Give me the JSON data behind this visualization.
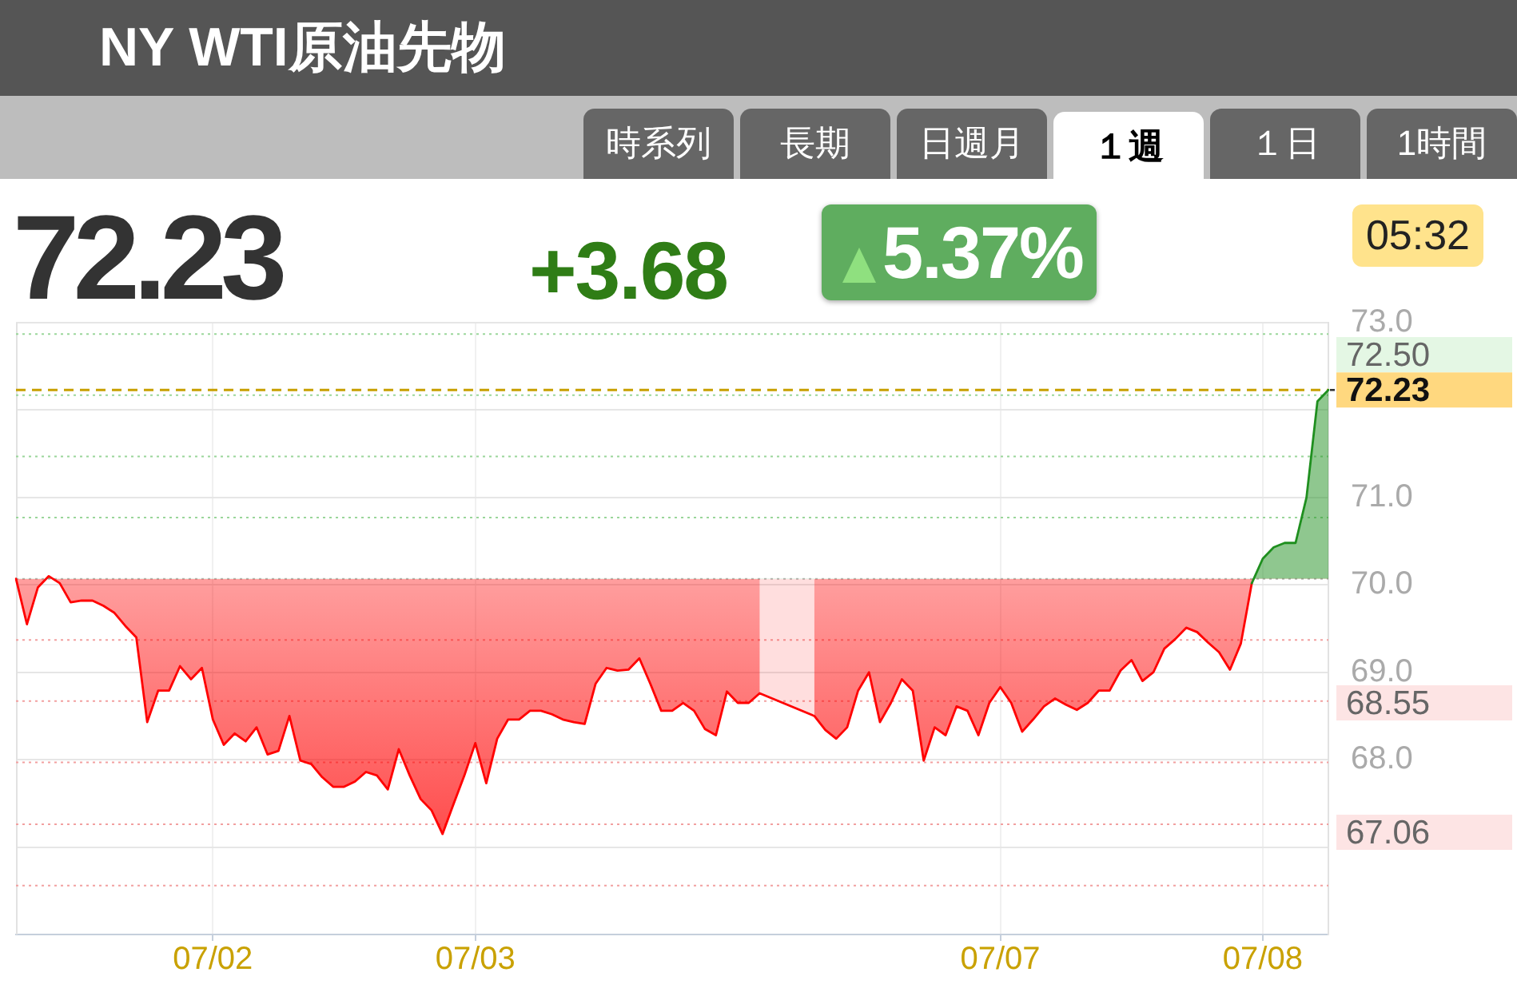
{
  "chart_data": {
    "type": "area",
    "title": "NY WTI原油先物",
    "categories": [
      null,
      null,
      null,
      null,
      null,
      null,
      null,
      null,
      null,
      null,
      null,
      null,
      null,
      null,
      null,
      null,
      null,
      null,
      "07/02",
      null,
      null,
      null,
      null,
      null,
      null,
      null,
      null,
      null,
      null,
      null,
      null,
      null,
      null,
      null,
      null,
      null,
      null,
      null,
      null,
      null,
      null,
      null,
      "07/03",
      null,
      null,
      null,
      null,
      null,
      null,
      null,
      null,
      null,
      null,
      null,
      null,
      null,
      null,
      null,
      null,
      null,
      null,
      null,
      null,
      null,
      null,
      null,
      null,
      null,
      null,
      null,
      null,
      null,
      null,
      null,
      null,
      null,
      null,
      null,
      null,
      null,
      null,
      null,
      null,
      null,
      null,
      null,
      null,
      null,
      null,
      null,
      "07/07",
      null,
      null,
      null,
      null,
      null,
      null,
      null,
      null,
      null,
      null,
      null,
      null,
      null,
      null,
      null,
      null,
      null,
      null,
      null,
      null,
      null,
      null,
      null,
      "07/08",
      null,
      null,
      null,
      null,
      null,
      null
    ],
    "values": [
      70.07,
      69.55,
      69.97,
      70.1,
      70.02,
      69.8,
      69.82,
      69.82,
      69.76,
      69.68,
      69.53,
      69.4,
      68.43,
      68.79,
      68.79,
      69.07,
      68.92,
      69.05,
      68.46,
      68.17,
      68.3,
      68.21,
      68.37,
      68.06,
      68.1,
      68.5,
      67.99,
      67.95,
      67.8,
      67.69,
      67.69,
      67.75,
      67.86,
      67.82,
      67.66,
      68.12,
      67.82,
      67.55,
      67.42,
      67.15,
      67.49,
      67.82,
      68.19,
      67.73,
      68.24,
      68.46,
      68.46,
      68.56,
      68.56,
      68.52,
      68.46,
      68.43,
      68.41,
      68.87,
      69.05,
      69.02,
      69.03,
      69.16,
      68.87,
      68.56,
      68.56,
      68.65,
      68.56,
      68.35,
      68.28,
      68.78,
      68.65,
      68.65,
      68.76,
      null,
      null,
      null,
      null,
      68.5,
      68.34,
      68.24,
      68.37,
      68.79,
      69.0,
      68.43,
      68.65,
      68.92,
      68.79,
      67.99,
      68.37,
      68.28,
      68.61,
      68.56,
      68.28,
      68.65,
      68.83,
      68.65,
      68.32,
      68.46,
      68.61,
      68.7,
      68.63,
      68.57,
      68.65,
      68.79,
      68.79,
      69.02,
      69.14,
      68.9,
      69.0,
      69.27,
      69.38,
      69.51,
      69.46,
      69.34,
      69.23,
      69.03,
      69.33,
      70.02,
      70.3,
      70.43,
      70.48,
      70.48,
      71.0,
      72.1,
      72.23
    ],
    "color": "#ff0000",
    "ylim": [
      66,
      73
    ],
    "yticks": [
      {
        "value": 67,
        "label": null
      },
      {
        "value": 68,
        "label": "68.0"
      },
      {
        "value": 69,
        "label": "69.0"
      },
      {
        "value": 70,
        "label": "70.0"
      },
      {
        "value": 71,
        "label": "71.0"
      },
      {
        "value": 72,
        "label": null
      },
      {
        "value": 73,
        "label": "73.0"
      }
    ],
    "grid": true,
    "ref_lines": [
      {
        "axis": "y",
        "value": 72.23,
        "label": "72.23",
        "color": "#c8a000",
        "line_style": "dashed"
      },
      {
        "axis": "y",
        "value": 70.07,
        "color": "#bbbbbb",
        "line_style": "dotted"
      },
      {
        "axis": "y",
        "value": 70.77,
        "color": "#9ad69a",
        "line_style": "dotted"
      },
      {
        "axis": "y",
        "value": 71.47,
        "color": "#9ad69a",
        "line_style": "dotted"
      },
      {
        "axis": "y",
        "value": 72.17,
        "color": "#9ad69a",
        "line_style": "dotted"
      },
      {
        "axis": "y",
        "value": 72.87,
        "color": "#9ad69a",
        "line_style": "dotted"
      },
      {
        "axis": "y",
        "value": 69.37,
        "color": "#f2a0a0",
        "line_style": "dotted"
      },
      {
        "axis": "y",
        "value": 68.67,
        "color": "#f2a0a0",
        "line_style": "dotted"
      },
      {
        "axis": "y",
        "value": 67.97,
        "color": "#f2a0a0",
        "line_style": "dotted"
      },
      {
        "axis": "y",
        "value": 67.26,
        "color": "#f2a0a0",
        "line_style": "dotted"
      },
      {
        "axis": "y",
        "value": 66.56,
        "color": "#f2a0a0",
        "line_style": "dotted"
      }
    ],
    "annotations": [
      "時系列",
      "長期",
      "日週月",
      "１週",
      "１日",
      "1時間",
      "72.23",
      "+3.68",
      "5.37%",
      "05:32",
      "72.50",
      "68.55",
      "67.06"
    ]
  }
}
